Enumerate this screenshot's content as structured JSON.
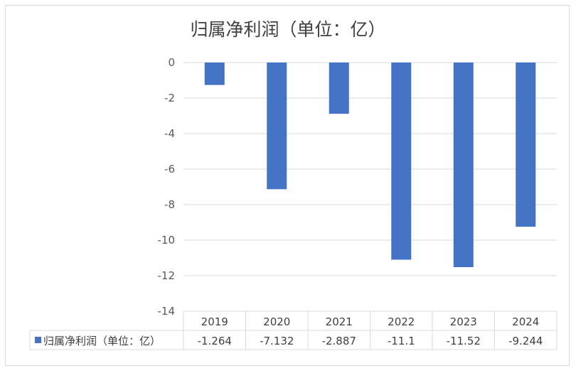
{
  "chart_data": {
    "type": "bar",
    "title": "归属净利润（单位：亿）",
    "categories": [
      "2019",
      "2020",
      "2021",
      "2022",
      "2023",
      "2024"
    ],
    "series": [
      {
        "name": "归属净利润（单位：亿）",
        "values": [
          -1.264,
          -7.132,
          -2.887,
          -11.1,
          -11.52,
          -9.244
        ],
        "labels": [
          "-1.264",
          "-7.132",
          "-2.887",
          "-11.1",
          "-11.52",
          "-9.244"
        ],
        "color": "#4472C4"
      }
    ],
    "yticks": [
      "0",
      "-2",
      "-4",
      "-6",
      "-8",
      "-10",
      "-12",
      "-14"
    ],
    "ylim": [
      -14,
      0
    ],
    "grid": true,
    "data_table": true
  }
}
